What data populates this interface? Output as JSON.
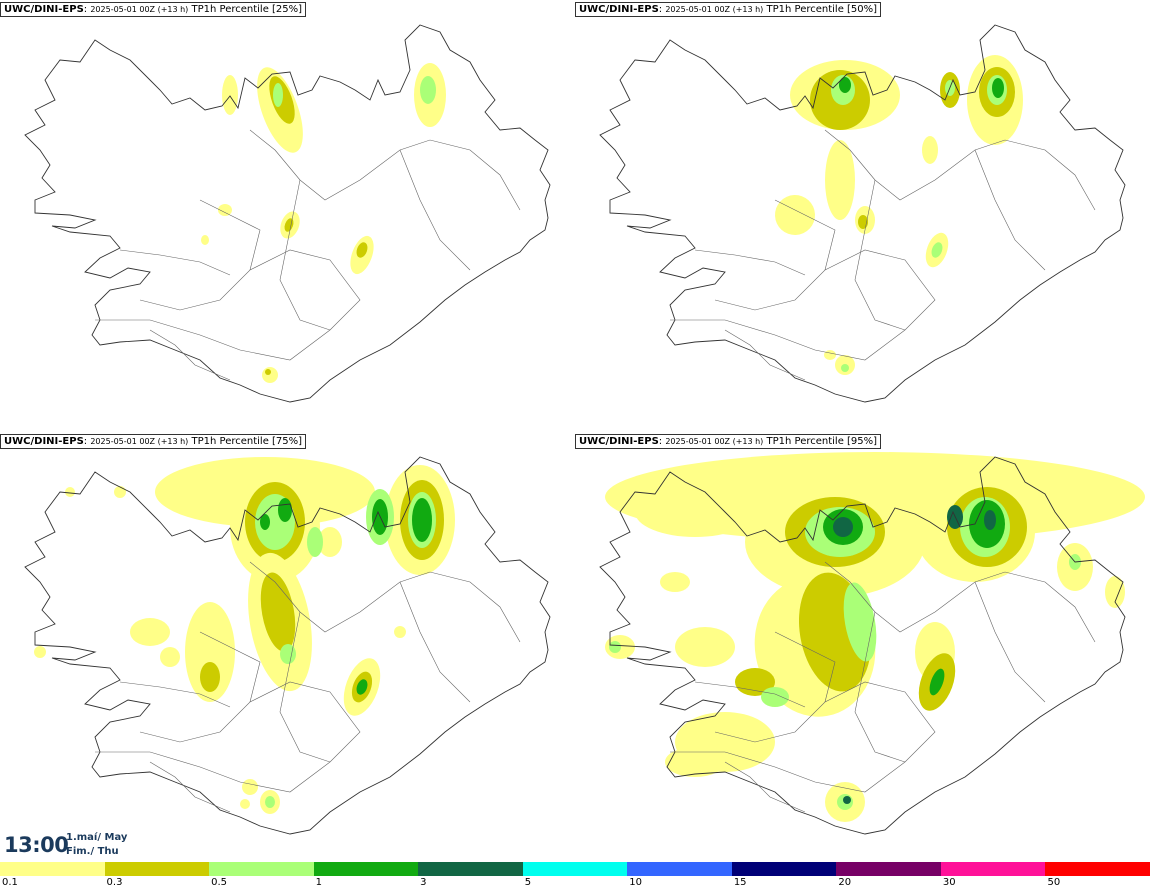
{
  "panels": [
    {
      "model": "UWC/DINI-EPS",
      "run": "2025-05-01 00Z (+13 h)",
      "field": "TP1h Percentile [25%]",
      "level": 1
    },
    {
      "model": "UWC/DINI-EPS",
      "run": "2025-05-01 00Z (+13 h)",
      "field": "TP1h Percentile [50%]",
      "level": 2
    },
    {
      "model": "UWC/DINI-EPS",
      "run": "2025-05-01 00Z (+13 h)",
      "field": "TP1h Percentile [75%]",
      "level": 3
    },
    {
      "model": "UWC/DINI-EPS",
      "run": "2025-05-01 00Z (+13 h)",
      "field": "TP1h Percentile [95%]",
      "level": 4
    }
  ],
  "valid": {
    "time": "13:00",
    "date_line1": "1.maí/ May",
    "date_line2": "Fim./ Thu"
  },
  "legend": {
    "colors": [
      "#ffff88",
      "#cccc00",
      "#aaff77",
      "#11aa11",
      "#116644",
      "#00ffee",
      "#3366ff",
      "#000077",
      "#770066",
      "#ff1199",
      "#ff0000"
    ],
    "ticks": [
      "0.1",
      "0.3",
      "0.5",
      "1",
      "3",
      "5",
      "10",
      "15",
      "20",
      "30",
      "50"
    ]
  }
}
